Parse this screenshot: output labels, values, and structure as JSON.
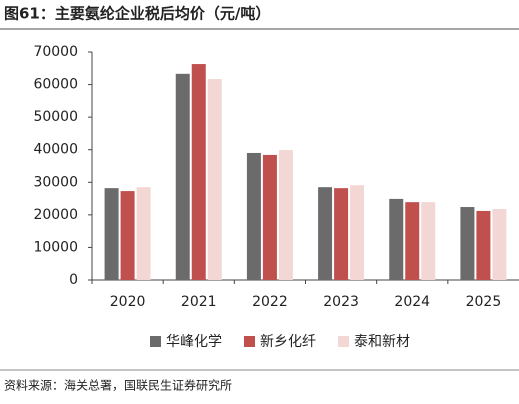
{
  "chart_data": {
    "type": "bar",
    "title": "图61：主要氨纶企业税后均价（元/吨）",
    "source": "资料来源：海关总署，国联民生证券研究所",
    "categories": [
      "2020",
      "2021",
      "2022",
      "2023",
      "2024",
      "2025"
    ],
    "series": [
      {
        "name": "华峰化学",
        "color": "#6b6b6b",
        "values": [
          28200,
          63300,
          39000,
          28500,
          24900,
          22400
        ]
      },
      {
        "name": "新乡化纤",
        "color": "#c0504d",
        "values": [
          27300,
          66300,
          38400,
          28200,
          23900,
          21200
        ]
      },
      {
        "name": "泰和新材",
        "color": "#f2d7d5",
        "values": [
          28500,
          61700,
          39900,
          29100,
          23900,
          21800
        ]
      }
    ],
    "ylim": [
      0,
      70000
    ],
    "yticks": [
      0,
      10000,
      20000,
      30000,
      40000,
      50000,
      60000,
      70000
    ],
    "grid": false
  }
}
